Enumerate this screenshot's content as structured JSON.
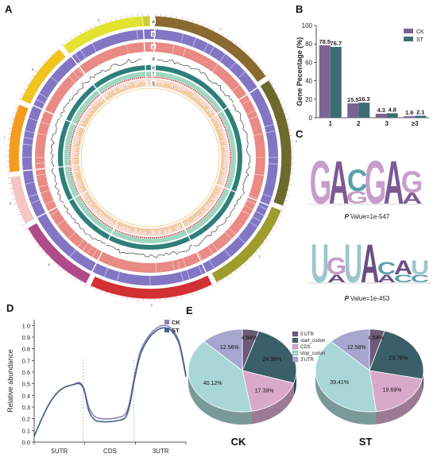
{
  "panels": {
    "A": "A",
    "B": "B",
    "C": "C",
    "D": "D",
    "E": "E"
  },
  "circos": {
    "track_letters": [
      "a",
      "b",
      "c",
      "d",
      "e",
      "f",
      "g"
    ],
    "chrom_labels": [
      "1",
      "2",
      "3",
      "4",
      "5",
      "6",
      "7",
      "8",
      "9",
      "10"
    ],
    "chrom_colors": [
      "#8a6a30",
      "#6d6a2e",
      "#9e9c2a",
      "#d23032",
      "#b04b8a",
      "#f4c7c4",
      "#f39c1e",
      "#f1c31e",
      "#e2e230",
      "#cccc3a"
    ],
    "chrom_spans_deg": [
      [
        2,
        55
      ],
      [
        57,
        110
      ],
      [
        112,
        152
      ],
      [
        154,
        205
      ],
      [
        207,
        240
      ],
      [
        242,
        262
      ],
      [
        264,
        292
      ],
      [
        294,
        320
      ],
      [
        322,
        357
      ],
      [
        357,
        360
      ]
    ]
  },
  "chart_data": [
    {
      "panel": "B",
      "type": "bar",
      "categories": [
        "1",
        "2",
        "3",
        "≥3"
      ],
      "series": [
        {
          "name": "CK",
          "values": [
            78.5,
            15.5,
            4.3,
            1.6
          ],
          "color": "#7b6494"
        },
        {
          "name": "ST",
          "values": [
            76.7,
            16.3,
            4.8,
            2.1
          ],
          "color": "#3d6b73"
        }
      ],
      "value_labels": [
        [
          "78.5",
          "15.5",
          "4.3",
          "1.6"
        ],
        [
          "76.7",
          "16.3",
          "4.8",
          "2.1"
        ]
      ],
      "ylabel": "Gene Pecentage (%)",
      "ylim": [
        0,
        100
      ],
      "yticks": [
        0,
        20,
        40,
        60,
        80,
        100
      ],
      "legend": "top-right"
    },
    {
      "panel": "C",
      "type": "table",
      "motifs": [
        {
          "letters": [
            "G",
            "A",
            "C",
            "G",
            "A",
            "G"
          ],
          "second": [
            "",
            "",
            "G",
            "",
            "",
            "A"
          ],
          "pvalue_label": "P Value=1e-547"
        },
        {
          "letters": [
            "U",
            "G",
            "U",
            "A",
            "C",
            "A",
            "U"
          ],
          "second": [
            "",
            "A",
            "",
            "",
            "A",
            "C",
            "C"
          ],
          "pvalue_label": "P Value=1e-453"
        }
      ]
    },
    {
      "panel": "D",
      "type": "line",
      "ylabel": "Relative abundance",
      "ylim": [
        0,
        1.05
      ],
      "yticks": [
        "0.0",
        "0.1",
        "0.2",
        "0.3",
        "0.4",
        "0.5",
        "0.6",
        "0.7",
        "0.8",
        "0.9",
        "1.0"
      ],
      "region_labels": [
        "5UTR",
        "CDS",
        "3UTR"
      ],
      "legend": "top-right",
      "series": [
        {
          "name": "CK",
          "color": "#8c80b8",
          "x": [
            0,
            0.05,
            0.1,
            0.15,
            0.2,
            0.25,
            0.3,
            0.33,
            0.36,
            0.4,
            0.45,
            0.5,
            0.55,
            0.6,
            0.63,
            0.66,
            0.7,
            0.75,
            0.8,
            0.85,
            0.9,
            0.95,
            0.98,
            1.0
          ],
          "y": [
            0.05,
            0.2,
            0.33,
            0.42,
            0.47,
            0.49,
            0.51,
            0.45,
            0.3,
            0.22,
            0.2,
            0.2,
            0.21,
            0.24,
            0.35,
            0.56,
            0.78,
            0.9,
            0.97,
            1.0,
            0.98,
            0.88,
            0.72,
            0.57
          ]
        },
        {
          "name": "ST",
          "color": "#3f5f88",
          "x": [
            0,
            0.05,
            0.1,
            0.15,
            0.2,
            0.25,
            0.3,
            0.33,
            0.36,
            0.4,
            0.45,
            0.5,
            0.55,
            0.6,
            0.63,
            0.66,
            0.7,
            0.75,
            0.8,
            0.85,
            0.9,
            0.95,
            0.98,
            1.0
          ],
          "y": [
            0.05,
            0.2,
            0.33,
            0.42,
            0.47,
            0.49,
            0.5,
            0.44,
            0.27,
            0.19,
            0.175,
            0.175,
            0.185,
            0.21,
            0.32,
            0.53,
            0.75,
            0.88,
            0.95,
            0.98,
            0.96,
            0.86,
            0.7,
            0.56
          ]
        }
      ]
    },
    {
      "panel": "E",
      "type": "pie",
      "categories": [
        "5'UTR",
        "start_codon",
        "CDS",
        "stop_codon",
        "3'UTR"
      ],
      "colors": [
        "#6b5a78",
        "#3b5f68",
        "#d9a9cc",
        "#a9d6d6",
        "#a7a6cf"
      ],
      "legend": "top-left of ST pie",
      "pies": [
        {
          "name": "CK",
          "values": [
            4.94,
            24.98,
            17.39,
            40.12,
            12.56
          ],
          "labels": [
            "4.94%",
            "24.98%",
            "17.39%",
            "40.12%",
            "12.56%"
          ]
        },
        {
          "name": "ST",
          "values": [
            4.54,
            23.78,
            19.69,
            39.41,
            12.58
          ],
          "labels": [
            "4.54%",
            "23.78%",
            "19.69%",
            "39.41%",
            "12.58%"
          ]
        }
      ]
    }
  ]
}
